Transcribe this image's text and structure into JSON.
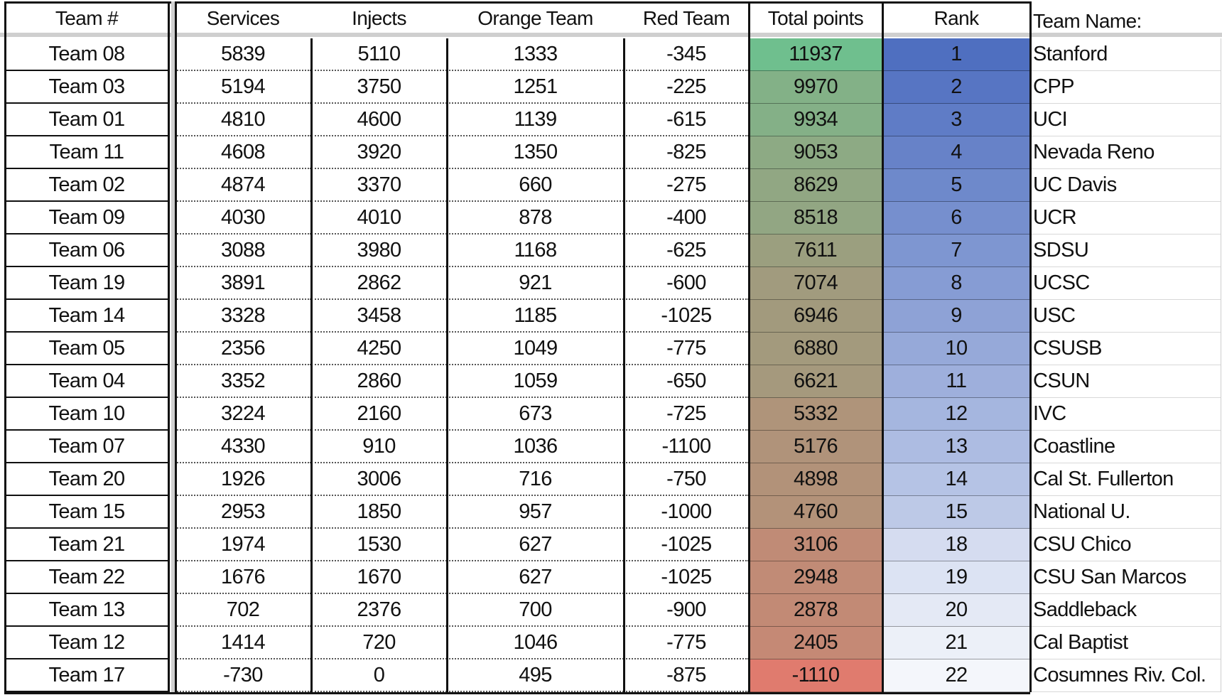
{
  "headers": {
    "team": "Team #",
    "services": "Services",
    "injects": "Injects",
    "orange": "Orange Team",
    "red": "Red Team",
    "total": "Total points",
    "rank": "Rank",
    "name": "Team Name:"
  },
  "colors": {
    "total_high": "#6fbf8e",
    "total_mid": "#a39a7d",
    "total_low": "#e07b6e",
    "rank_high": "#4f6fc0",
    "rank_low": "#f4f6fb"
  },
  "rows": [
    {
      "team": "Team 08",
      "services": "5839",
      "injects": "5110",
      "orange": "1333",
      "red": "-345",
      "total": "11937",
      "rank": "1",
      "name": "Stanford"
    },
    {
      "team": "Team 03",
      "services": "5194",
      "injects": "3750",
      "orange": "1251",
      "red": "-225",
      "total": "9970",
      "rank": "2",
      "name": "CPP"
    },
    {
      "team": "Team 01",
      "services": "4810",
      "injects": "4600",
      "orange": "1139",
      "red": "-615",
      "total": "9934",
      "rank": "3",
      "name": "UCI"
    },
    {
      "team": "Team 11",
      "services": "4608",
      "injects": "3920",
      "orange": "1350",
      "red": "-825",
      "total": "9053",
      "rank": "4",
      "name": "Nevada Reno"
    },
    {
      "team": "Team 02",
      "services": "4874",
      "injects": "3370",
      "orange": "660",
      "red": "-275",
      "total": "8629",
      "rank": "5",
      "name": "UC Davis"
    },
    {
      "team": "Team 09",
      "services": "4030",
      "injects": "4010",
      "orange": "878",
      "red": "-400",
      "total": "8518",
      "rank": "6",
      "name": "UCR"
    },
    {
      "team": "Team 06",
      "services": "3088",
      "injects": "3980",
      "orange": "1168",
      "red": "-625",
      "total": "7611",
      "rank": "7",
      "name": "SDSU"
    },
    {
      "team": "Team 19",
      "services": "3891",
      "injects": "2862",
      "orange": "921",
      "red": "-600",
      "total": "7074",
      "rank": "8",
      "name": "UCSC"
    },
    {
      "team": "Team 14",
      "services": "3328",
      "injects": "3458",
      "orange": "1185",
      "red": "-1025",
      "total": "6946",
      "rank": "9",
      "name": "USC"
    },
    {
      "team": "Team 05",
      "services": "2356",
      "injects": "4250",
      "orange": "1049",
      "red": "-775",
      "total": "6880",
      "rank": "10",
      "name": "CSUSB"
    },
    {
      "team": "Team 04",
      "services": "3352",
      "injects": "2860",
      "orange": "1059",
      "red": "-650",
      "total": "6621",
      "rank": "11",
      "name": "CSUN"
    },
    {
      "team": "Team 10",
      "services": "3224",
      "injects": "2160",
      "orange": "673",
      "red": "-725",
      "total": "5332",
      "rank": "12",
      "name": "IVC"
    },
    {
      "team": "Team 07",
      "services": "4330",
      "injects": "910",
      "orange": "1036",
      "red": "-1100",
      "total": "5176",
      "rank": "13",
      "name": "Coastline"
    },
    {
      "team": "Team 20",
      "services": "1926",
      "injects": "3006",
      "orange": "716",
      "red": "-750",
      "total": "4898",
      "rank": "14",
      "name": "Cal St. Fullerton"
    },
    {
      "team": "Team 15",
      "services": "2953",
      "injects": "1850",
      "orange": "957",
      "red": "-1000",
      "total": "4760",
      "rank": "15",
      "name": "National U."
    },
    {
      "team": "Team 21",
      "services": "1974",
      "injects": "1530",
      "orange": "627",
      "red": "-1025",
      "total": "3106",
      "rank": "18",
      "name": "CSU Chico"
    },
    {
      "team": "Team 22",
      "services": "1676",
      "injects": "1670",
      "orange": "627",
      "red": "-1025",
      "total": "2948",
      "rank": "19",
      "name": "CSU San Marcos"
    },
    {
      "team": "Team 13",
      "services": "702",
      "injects": "2376",
      "orange": "700",
      "red": "-900",
      "total": "2878",
      "rank": "20",
      "name": "Saddleback"
    },
    {
      "team": "Team 12",
      "services": "1414",
      "injects": "720",
      "orange": "1046",
      "red": "-775",
      "total": "2405",
      "rank": "21",
      "name": "Cal Baptist"
    },
    {
      "team": "Team 17",
      "services": "-730",
      "injects": "0",
      "orange": "495",
      "red": "-875",
      "total": "-1110",
      "rank": "22",
      "name": "Cosumnes Riv. Col."
    }
  ]
}
